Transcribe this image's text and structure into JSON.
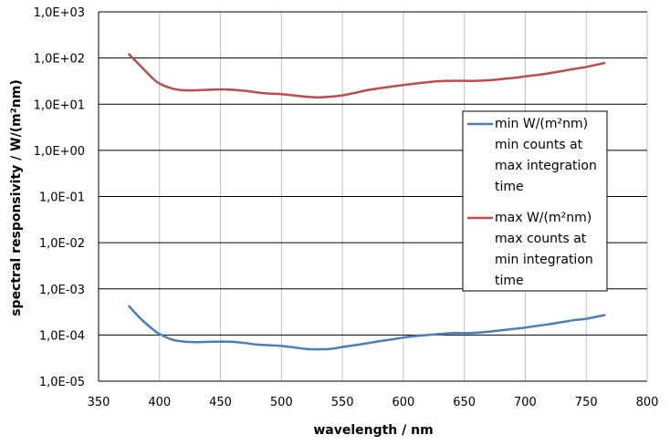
{
  "chart_data": {
    "type": "line",
    "title": "",
    "xlabel": "wavelength / nm",
    "ylabel": "spectral responsivity  / W/(m²nm)",
    "xlim": [
      350,
      800
    ],
    "ylim": [
      1e-05,
      1000
    ],
    "yscale": "log",
    "grid": true,
    "legend_position": "right",
    "x_ticks": [
      "350",
      "400",
      "450",
      "500",
      "550",
      "600",
      "650",
      "700",
      "750",
      "800"
    ],
    "y_ticks": [
      "1,0E-05",
      "1,0E-04",
      "1,0E-03",
      "1,0E-02",
      "1,0E-01",
      "1,0E+00",
      "1,0E+01",
      "1,0E+02",
      "1,0E+03"
    ],
    "series": [
      {
        "name": "min W/(m²nm)",
        "legend_lines": [
          "min W/(m²nm)",
          "min counts at",
          "max integration",
          "time"
        ],
        "color": "#4a7ebb",
        "x": [
          375,
          385,
          395,
          400,
          410,
          420,
          430,
          440,
          450,
          460,
          470,
          480,
          490,
          500,
          510,
          520,
          530,
          540,
          550,
          560,
          570,
          580,
          590,
          600,
          610,
          620,
          630,
          640,
          650,
          660,
          670,
          680,
          690,
          700,
          710,
          720,
          730,
          740,
          750,
          765
        ],
        "y": [
          0.00042,
          0.00022,
          0.00013,
          0.000105,
          8e-05,
          7.2e-05,
          7e-05,
          7.1e-05,
          7.2e-05,
          7.1e-05,
          6.7e-05,
          6.2e-05,
          6e-05,
          5.8e-05,
          5.4e-05,
          5e-05,
          4.9e-05,
          5e-05,
          5.5e-05,
          6e-05,
          6.6e-05,
          7.3e-05,
          8e-05,
          8.8e-05,
          9.5e-05,
          0.0001,
          0.000105,
          0.00011,
          0.00011,
          0.000112,
          0.000118,
          0.000126,
          0.000135,
          0.000145,
          0.000158,
          0.000172,
          0.00019,
          0.00021,
          0.000225,
          0.00027
        ]
      },
      {
        "name": "max W/(m²nm)",
        "legend_lines": [
          "max W/(m²nm)",
          "max counts at",
          "min integration",
          "time"
        ],
        "color": "#be4b48",
        "x": [
          375,
          385,
          395,
          400,
          410,
          420,
          430,
          440,
          450,
          460,
          470,
          480,
          490,
          500,
          510,
          520,
          530,
          540,
          550,
          560,
          570,
          580,
          590,
          600,
          610,
          620,
          630,
          640,
          650,
          660,
          670,
          680,
          690,
          700,
          710,
          720,
          730,
          740,
          750,
          765
        ],
        "y": [
          120,
          65,
          35,
          28,
          22,
          20,
          20,
          20.5,
          21,
          20.5,
          19.5,
          18,
          17,
          16.5,
          15.5,
          14.5,
          14,
          14.5,
          15.5,
          17.5,
          20,
          22,
          24,
          26,
          28,
          30,
          31.5,
          32,
          32,
          32,
          33,
          35,
          37,
          40,
          43,
          47,
          52,
          58,
          64,
          78
        ]
      }
    ]
  }
}
